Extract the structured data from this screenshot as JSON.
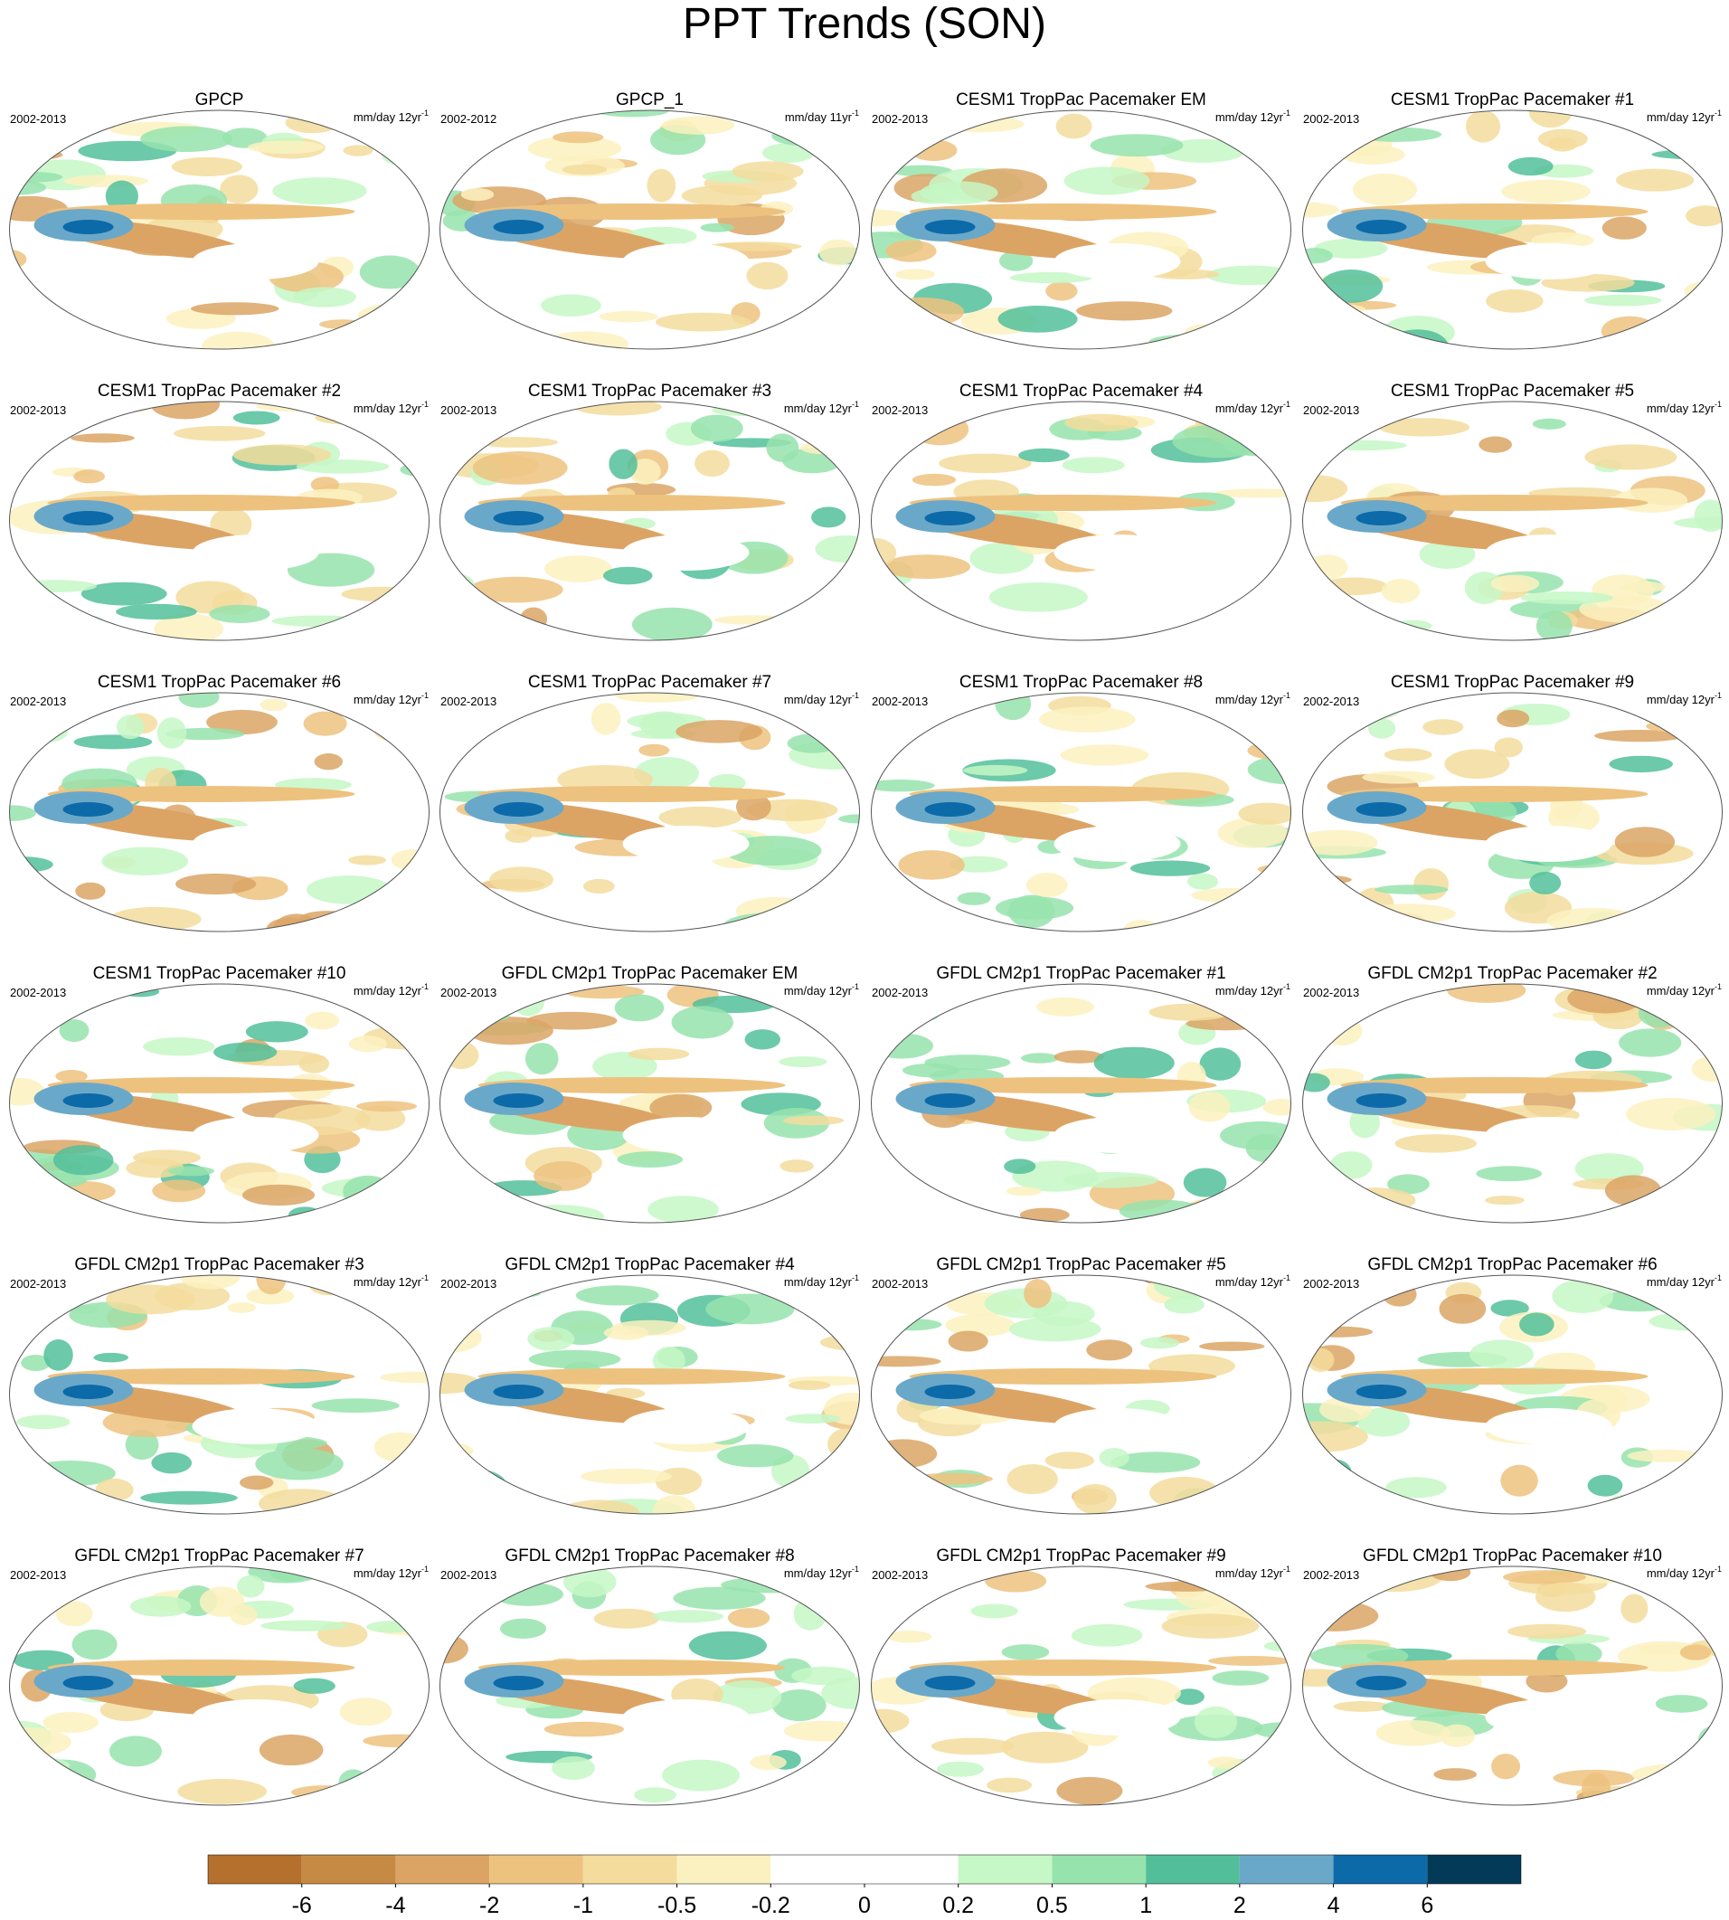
{
  "title": "PPT Trends (SON)",
  "panels": [
    {
      "title": "GPCP",
      "period": "2002-2013",
      "units": "mm/day 12yr",
      "units_exp": "-1"
    },
    {
      "title": "GPCP_1",
      "period": "2002-2012",
      "units": "mm/day 11yr",
      "units_exp": "-1"
    },
    {
      "title": "CESM1 TropPac Pacemaker EM",
      "period": "2002-2013",
      "units": "mm/day 12yr",
      "units_exp": "-1"
    },
    {
      "title": "CESM1 TropPac Pacemaker #1",
      "period": "2002-2013",
      "units": "mm/day 12yr",
      "units_exp": "-1"
    },
    {
      "title": "CESM1 TropPac Pacemaker #2",
      "period": "2002-2013",
      "units": "mm/day 12yr",
      "units_exp": "-1"
    },
    {
      "title": "CESM1 TropPac Pacemaker #3",
      "period": "2002-2013",
      "units": "mm/day 12yr",
      "units_exp": "-1"
    },
    {
      "title": "CESM1 TropPac Pacemaker #4",
      "period": "2002-2013",
      "units": "mm/day 12yr",
      "units_exp": "-1"
    },
    {
      "title": "CESM1 TropPac Pacemaker #5",
      "period": "2002-2013",
      "units": "mm/day 12yr",
      "units_exp": "-1"
    },
    {
      "title": "CESM1 TropPac Pacemaker #6",
      "period": "2002-2013",
      "units": "mm/day 12yr",
      "units_exp": "-1"
    },
    {
      "title": "CESM1 TropPac Pacemaker #7",
      "period": "2002-2013",
      "units": "mm/day 12yr",
      "units_exp": "-1"
    },
    {
      "title": "CESM1 TropPac Pacemaker #8",
      "period": "2002-2013",
      "units": "mm/day 12yr",
      "units_exp": "-1"
    },
    {
      "title": "CESM1 TropPac Pacemaker #9",
      "period": "2002-2013",
      "units": "mm/day 12yr",
      "units_exp": "-1"
    },
    {
      "title": "CESM1 TropPac Pacemaker #10",
      "period": "2002-2013",
      "units": "mm/day 12yr",
      "units_exp": "-1"
    },
    {
      "title": "GFDL CM2p1 TropPac Pacemaker EM",
      "period": "2002-2013",
      "units": "mm/day 12yr",
      "units_exp": "-1"
    },
    {
      "title": "GFDL CM2p1 TropPac Pacemaker #1",
      "period": "2002-2013",
      "units": "mm/day 12yr",
      "units_exp": "-1"
    },
    {
      "title": "GFDL CM2p1 TropPac Pacemaker #2",
      "period": "2002-2013",
      "units": "mm/day 12yr",
      "units_exp": "-1"
    },
    {
      "title": "GFDL CM2p1 TropPac Pacemaker #3",
      "period": "2002-2013",
      "units": "mm/day 12yr",
      "units_exp": "-1"
    },
    {
      "title": "GFDL CM2p1 TropPac Pacemaker #4",
      "period": "2002-2013",
      "units": "mm/day 12yr",
      "units_exp": "-1"
    },
    {
      "title": "GFDL CM2p1 TropPac Pacemaker #5",
      "period": "2002-2013",
      "units": "mm/day 12yr",
      "units_exp": "-1"
    },
    {
      "title": "GFDL CM2p1 TropPac Pacemaker #6",
      "period": "2002-2013",
      "units": "mm/day 12yr",
      "units_exp": "-1"
    },
    {
      "title": "GFDL CM2p1 TropPac Pacemaker #7",
      "period": "2002-2013",
      "units": "mm/day 12yr",
      "units_exp": "-1"
    },
    {
      "title": "GFDL CM2p1 TropPac Pacemaker #8",
      "period": "2002-2013",
      "units": "mm/day 12yr",
      "units_exp": "-1"
    },
    {
      "title": "GFDL CM2p1 TropPac Pacemaker #9",
      "period": "2002-2013",
      "units": "mm/day 12yr",
      "units_exp": "-1"
    },
    {
      "title": "GFDL CM2p1 TropPac Pacemaker #10",
      "period": "2002-2013",
      "units": "mm/day 12yr",
      "units_exp": "-1"
    }
  ],
  "colorbar": {
    "colors": [
      "#b5702d",
      "#c78a45",
      "#dba465",
      "#edc27f",
      "#f3dc9c",
      "#fbf1c0",
      "#ffffff",
      "#ffffff",
      "#c6f7c6",
      "#96e3ad",
      "#52bf9a",
      "#6aa8c9",
      "#0c6aa8",
      "#033a57"
    ],
    "ticks": [
      -6,
      -4,
      -2,
      -1,
      -0.5,
      -0.2,
      0,
      0.2,
      0.5,
      1,
      2,
      4,
      6
    ]
  }
}
